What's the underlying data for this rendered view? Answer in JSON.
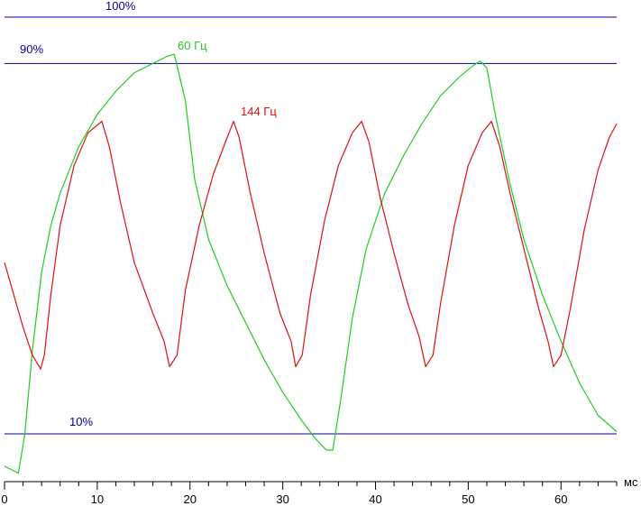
{
  "chart_data": {
    "type": "line",
    "xlabel": "мс",
    "xlim": [
      0,
      66
    ],
    "ylim": [
      0,
      100
    ],
    "x_ticks": [
      0,
      10,
      20,
      30,
      40,
      50,
      60
    ],
    "grid": false,
    "reference_lines": [
      {
        "label": "100%",
        "value": 100,
        "color": "#00009c"
      },
      {
        "label": "90%",
        "value": 90,
        "color": "#00009c"
      },
      {
        "label": "10%",
        "value": 10,
        "color": "#00009c"
      }
    ],
    "series": [
      {
        "name": "60 Гц",
        "color": "#22cc22",
        "points": [
          [
            0,
            3
          ],
          [
            1,
            2
          ],
          [
            1.5,
            1.5
          ],
          [
            2.2,
            10
          ],
          [
            3,
            28
          ],
          [
            4,
            45
          ],
          [
            5,
            55
          ],
          [
            6,
            62
          ],
          [
            8,
            72
          ],
          [
            10,
            79
          ],
          [
            12,
            84
          ],
          [
            14,
            88
          ],
          [
            16,
            90
          ],
          [
            17.5,
            91.5
          ],
          [
            18.3,
            92
          ],
          [
            19.5,
            82
          ],
          [
            20.5,
            65
          ],
          [
            22,
            52
          ],
          [
            24,
            42
          ],
          [
            26,
            34
          ],
          [
            28,
            26
          ],
          [
            30,
            19
          ],
          [
            32,
            13
          ],
          [
            33.5,
            9
          ],
          [
            34.7,
            6.5
          ],
          [
            35.4,
            6.5
          ],
          [
            36.3,
            18
          ],
          [
            37.5,
            35
          ],
          [
            39,
            50
          ],
          [
            41,
            62
          ],
          [
            43,
            70
          ],
          [
            45,
            77
          ],
          [
            47,
            83
          ],
          [
            49,
            87
          ],
          [
            50.5,
            89.5
          ],
          [
            51.3,
            90.5
          ],
          [
            52,
            89
          ],
          [
            53,
            78
          ],
          [
            54.5,
            64
          ],
          [
            56,
            52
          ],
          [
            58,
            40
          ],
          [
            60,
            30
          ],
          [
            62,
            21
          ],
          [
            64,
            14
          ],
          [
            66,
            10.5
          ]
        ]
      },
      {
        "name": "144 Гц",
        "color": "#dd1111",
        "points": [
          [
            0,
            47
          ],
          [
            1,
            40
          ],
          [
            2,
            33
          ],
          [
            3,
            27
          ],
          [
            3.9,
            24
          ],
          [
            4.3,
            27
          ],
          [
            5,
            40
          ],
          [
            6,
            55
          ],
          [
            7.5,
            68
          ],
          [
            9,
            75
          ],
          [
            10.5,
            77.5
          ],
          [
            11.3,
            72
          ],
          [
            12.5,
            60
          ],
          [
            14,
            47
          ],
          [
            16,
            36
          ],
          [
            17.2,
            30
          ],
          [
            17.8,
            24.5
          ],
          [
            18.6,
            27
          ],
          [
            19.5,
            41
          ],
          [
            21,
            55
          ],
          [
            22.5,
            66
          ],
          [
            24,
            74
          ],
          [
            24.7,
            77.5
          ],
          [
            25.3,
            74
          ],
          [
            26.5,
            62
          ],
          [
            28,
            49
          ],
          [
            29.7,
            36
          ],
          [
            30.9,
            30
          ],
          [
            31.4,
            24.5
          ],
          [
            32.1,
            27
          ],
          [
            33,
            40
          ],
          [
            34.5,
            56
          ],
          [
            36,
            68
          ],
          [
            37.5,
            75
          ],
          [
            38.5,
            77.5
          ],
          [
            39.3,
            73
          ],
          [
            40.5,
            61
          ],
          [
            42,
            49
          ],
          [
            43.5,
            38
          ],
          [
            44.7,
            31
          ],
          [
            45.4,
            24.5
          ],
          [
            46.2,
            27
          ],
          [
            47,
            38
          ],
          [
            48.5,
            55
          ],
          [
            50,
            68
          ],
          [
            51.5,
            75
          ],
          [
            52.5,
            77.5
          ],
          [
            53.4,
            72
          ],
          [
            54.5,
            62
          ],
          [
            56,
            50
          ],
          [
            57.6,
            37
          ],
          [
            58.6,
            30
          ],
          [
            59.2,
            24.5
          ],
          [
            60,
            27
          ],
          [
            61,
            37
          ],
          [
            62.5,
            54
          ],
          [
            64,
            67
          ],
          [
            65.2,
            74
          ],
          [
            66,
            77
          ]
        ]
      }
    ],
    "annotations": [
      {
        "text": "60 Гц",
        "series": 0
      },
      {
        "text": "144 Гц",
        "series": 1
      }
    ]
  }
}
